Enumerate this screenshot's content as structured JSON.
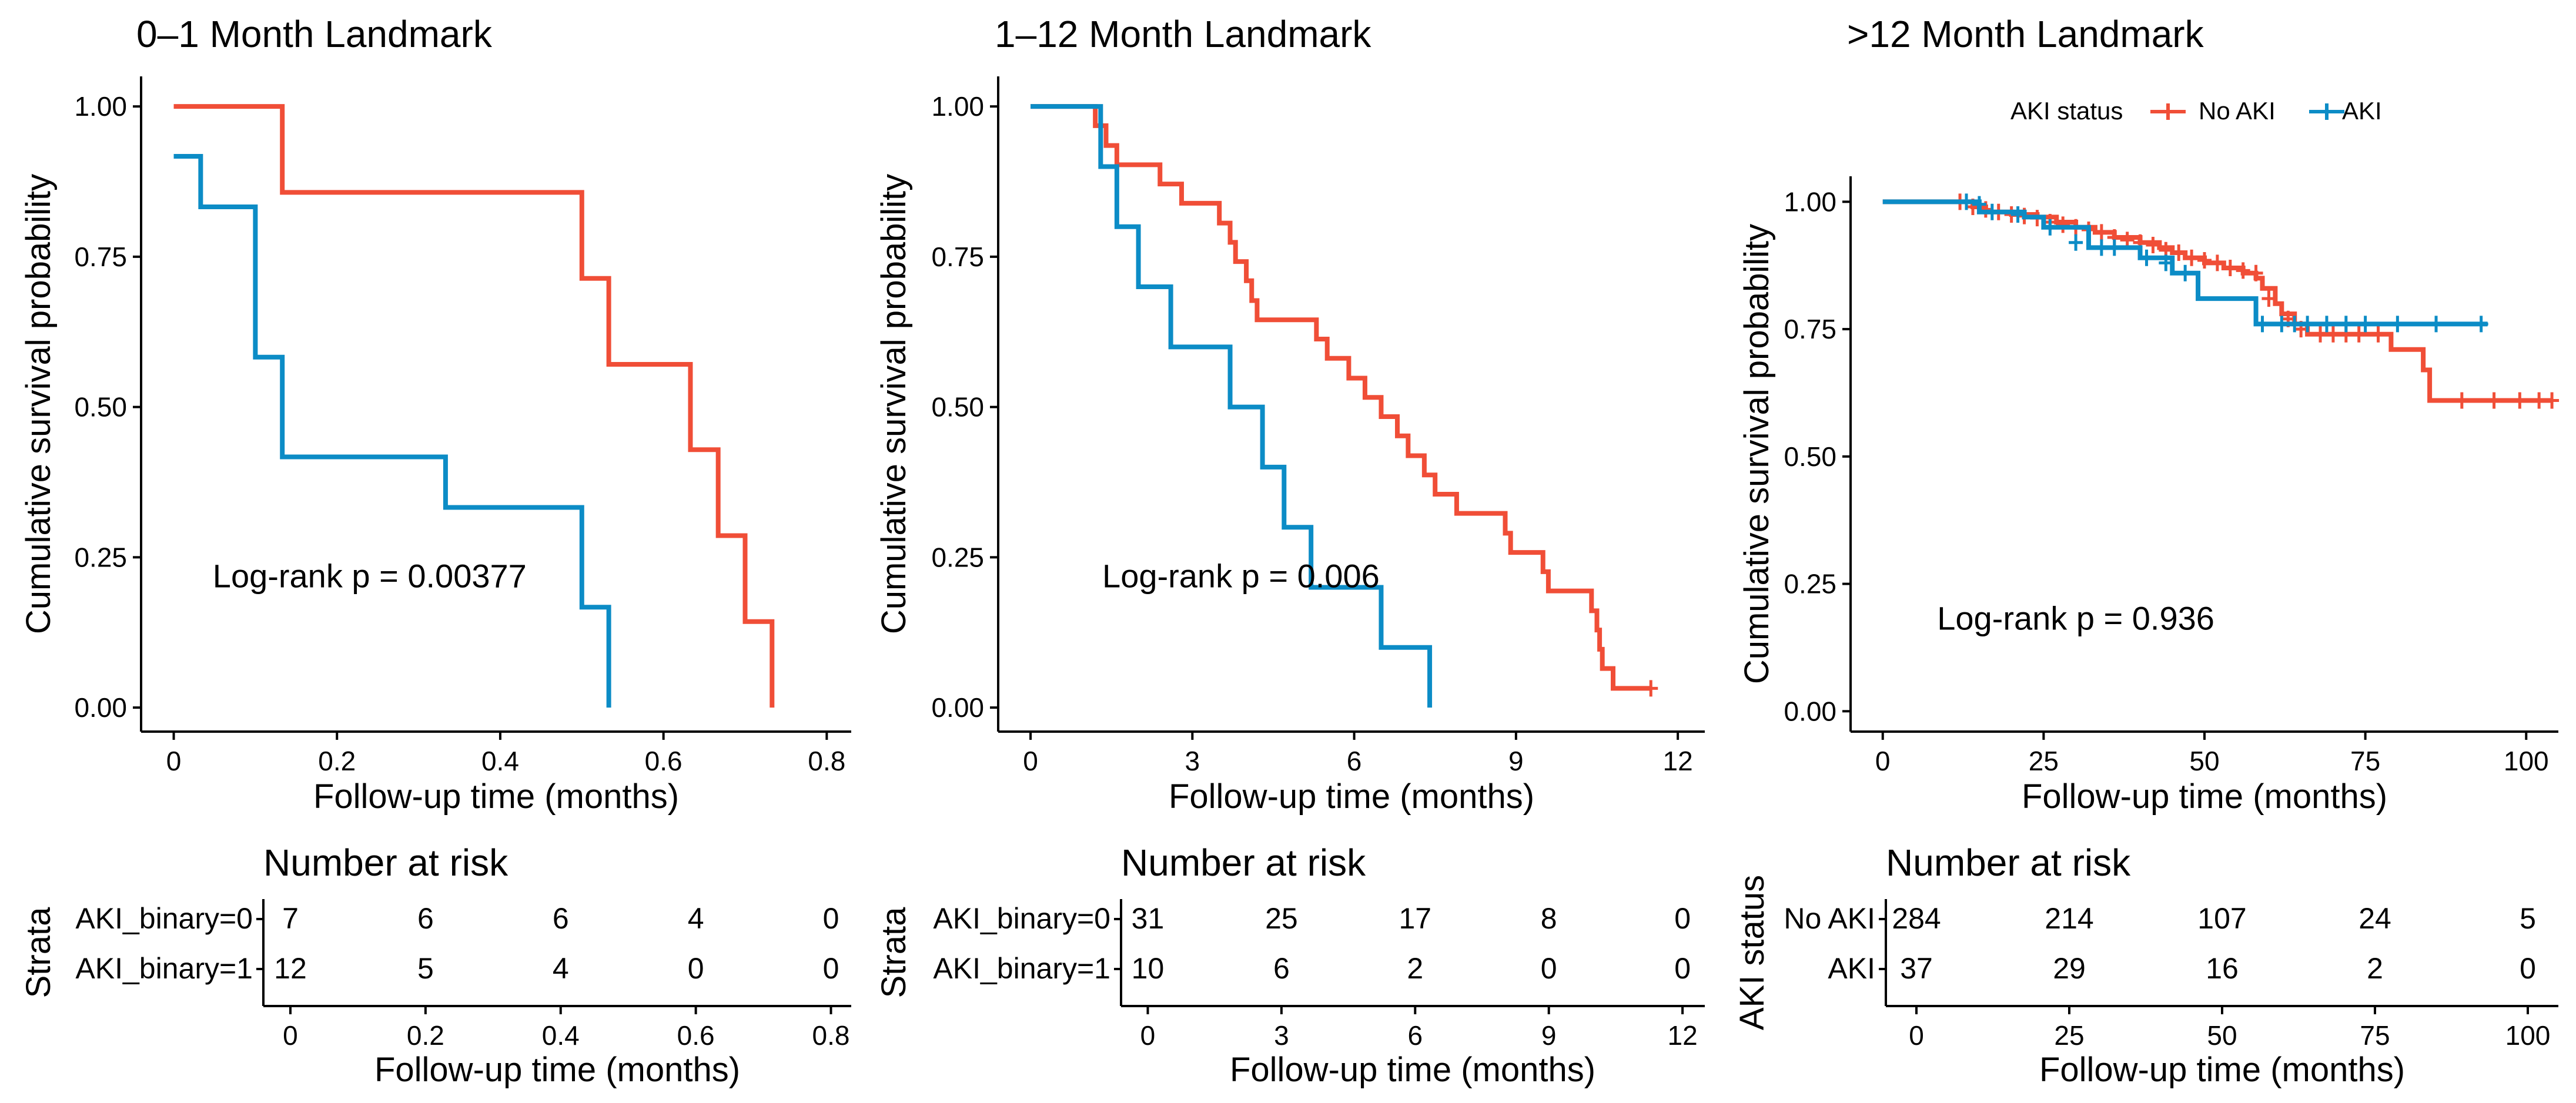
{
  "chart_data": [
    {
      "type": "line",
      "title": "0–1 Month Landmark",
      "xlabel": "Follow-up time (months)",
      "ylabel": "Cumulative survival probability",
      "xlim": [
        -0.04,
        0.83
      ],
      "ylim": [
        -0.04,
        1.05
      ],
      "xticks": [
        0,
        0.2,
        0.4,
        0.6,
        0.8
      ],
      "xtick_labels": [
        "0",
        "0.2",
        "0.4",
        "0.6",
        "0.8"
      ],
      "yticks": [
        0,
        0.25,
        0.5,
        0.75,
        1.0
      ],
      "ytick_labels": [
        "0.00",
        "0.25",
        "0.50",
        "0.75",
        "1.00"
      ],
      "annotation": "Log-rank p = 0.00377",
      "annotation_pos": [
        0.24,
        0.2
      ],
      "series": [
        {
          "name": "AKI_binary=0",
          "color": "#F04E37",
          "steps": [
            [
              0,
              1.0
            ],
            [
              0.133,
              0.857
            ],
            [
              0.5,
              0.714
            ],
            [
              0.533,
              0.571
            ],
            [
              0.633,
              0.429
            ],
            [
              0.667,
              0.286
            ],
            [
              0.7,
              0.143
            ],
            [
              0.733,
              0.0
            ]
          ],
          "end": 0.733,
          "censor": []
        },
        {
          "name": "AKI_binary=1",
          "color": "#0C8CC6",
          "steps": [
            [
              0,
              0.917
            ],
            [
              0.033,
              0.833
            ],
            [
              0.1,
              0.583
            ],
            [
              0.133,
              0.417
            ],
            [
              0.333,
              0.333
            ],
            [
              0.5,
              0.167
            ],
            [
              0.533,
              0.0
            ]
          ],
          "end": 0.533,
          "censor": []
        }
      ],
      "risk_table": {
        "title": "Number at risk",
        "ylabel": "Strata",
        "times": [
          0,
          0.2,
          0.4,
          0.6,
          0.8
        ],
        "time_labels": [
          "0",
          "0.2",
          "0.4",
          "0.6",
          "0.8"
        ],
        "rows": [
          {
            "label": "AKI_binary=0",
            "color": "#F04E37",
            "counts": [
              "7",
              "6",
              "6",
              "4",
              "0"
            ]
          },
          {
            "label": "AKI_binary=1",
            "color": "#0C8CC6",
            "counts": [
              "12",
              "5",
              "4",
              "0",
              "0"
            ]
          }
        ],
        "xlabel": "Follow-up time (months)"
      }
    },
    {
      "type": "line",
      "title": "1–12 Month Landmark",
      "xlabel": "Follow-up time (months)",
      "ylabel": "Cumulative survival probability",
      "xlim": [
        -0.6,
        12.5
      ],
      "ylim": [
        -0.04,
        1.05
      ],
      "xticks": [
        0,
        3,
        6,
        9,
        12
      ],
      "xtick_labels": [
        "0",
        "3",
        "6",
        "9",
        "12"
      ],
      "yticks": [
        0,
        0.25,
        0.5,
        0.75,
        1.0
      ],
      "ytick_labels": [
        "0.00",
        "0.25",
        "0.50",
        "0.75",
        "1.00"
      ],
      "annotation": "Log-rank p = 0.006",
      "annotation_pos": [
        3.9,
        0.2
      ],
      "series": [
        {
          "name": "AKI_binary=0",
          "color": "#F04E37",
          "steps": [
            [
              0,
              1.0
            ],
            [
              1.2,
              0.968
            ],
            [
              1.4,
              0.935
            ],
            [
              1.6,
              0.903
            ],
            [
              2.4,
              0.871
            ],
            [
              2.8,
              0.839
            ],
            [
              3.5,
              0.806
            ],
            [
              3.7,
              0.774
            ],
            [
              3.8,
              0.742
            ],
            [
              4.0,
              0.71
            ],
            [
              4.1,
              0.677
            ],
            [
              4.2,
              0.645
            ],
            [
              5.3,
              0.613
            ],
            [
              5.5,
              0.581
            ],
            [
              5.9,
              0.548
            ],
            [
              6.2,
              0.516
            ],
            [
              6.5,
              0.484
            ],
            [
              6.8,
              0.452
            ],
            [
              7.0,
              0.419
            ],
            [
              7.3,
              0.387
            ],
            [
              7.5,
              0.355
            ],
            [
              7.9,
              0.323
            ],
            [
              8.8,
              0.29
            ],
            [
              8.9,
              0.258
            ],
            [
              9.5,
              0.226
            ],
            [
              9.6,
              0.194
            ],
            [
              10.4,
              0.161
            ],
            [
              10.5,
              0.129
            ],
            [
              10.55,
              0.097
            ],
            [
              10.6,
              0.065
            ],
            [
              10.8,
              0.032
            ]
          ],
          "end": 11.5,
          "censor": [
            [
              11.5,
              0.032
            ]
          ]
        },
        {
          "name": "AKI_binary=1",
          "color": "#0C8CC6",
          "steps": [
            [
              0,
              1.0
            ],
            [
              1.3,
              0.9
            ],
            [
              1.6,
              0.8
            ],
            [
              2.0,
              0.7
            ],
            [
              2.6,
              0.6
            ],
            [
              3.7,
              0.5
            ],
            [
              4.3,
              0.4
            ],
            [
              4.7,
              0.3
            ],
            [
              5.2,
              0.2
            ],
            [
              6.5,
              0.1
            ],
            [
              7.4,
              0.0
            ]
          ],
          "end": 7.4,
          "censor": []
        }
      ],
      "risk_table": {
        "title": "Number at risk",
        "ylabel": "Strata",
        "times": [
          0,
          3,
          6,
          9,
          12
        ],
        "time_labels": [
          "0",
          "3",
          "6",
          "9",
          "12"
        ],
        "rows": [
          {
            "label": "AKI_binary=0",
            "color": "#F04E37",
            "counts": [
              "31",
              "25",
              "17",
              "8",
              "0"
            ]
          },
          {
            "label": "AKI_binary=1",
            "color": "#0C8CC6",
            "counts": [
              "10",
              "6",
              "2",
              "0",
              "0"
            ]
          }
        ],
        "xlabel": "Follow-up time (months)"
      }
    },
    {
      "type": "line",
      "title": ">12 Month Landmark",
      "xlabel": "Follow-up time (months)",
      "ylabel": "Cumulative survival probability",
      "xlim": [
        -5,
        105
      ],
      "ylim": [
        -0.04,
        1.05
      ],
      "xticks": [
        0,
        25,
        50,
        75,
        100
      ],
      "xtick_labels": [
        "0",
        "25",
        "50",
        "75",
        "100"
      ],
      "yticks": [
        0,
        0.25,
        0.5,
        0.75,
        1.0
      ],
      "ytick_labels": [
        "0.00",
        "0.25",
        "0.50",
        "0.75",
        "1.00"
      ],
      "annotation": "Log-rank p = 0.936",
      "annotation_pos": [
        30,
        0.16
      ],
      "legend": {
        "title": "AKI status",
        "position": "top",
        "entries": [
          {
            "name": "No AKI",
            "color": "#F04E37"
          },
          {
            "name": "AKI",
            "color": "#0C8CC6"
          }
        ]
      },
      "series": [
        {
          "name": "No AKI",
          "color": "#F04E37",
          "steps": [
            [
              0,
              1.0
            ],
            [
              14,
              0.99
            ],
            [
              16,
              0.98
            ],
            [
              20,
              0.975
            ],
            [
              24,
              0.97
            ],
            [
              27,
              0.96
            ],
            [
              30,
              0.95
            ],
            [
              33,
              0.94
            ],
            [
              36,
              0.93
            ],
            [
              40,
              0.92
            ],
            [
              43,
              0.91
            ],
            [
              45,
              0.9
            ],
            [
              47,
              0.89
            ],
            [
              50,
              0.88
            ],
            [
              53,
              0.87
            ],
            [
              56,
              0.86
            ],
            [
              58,
              0.85
            ],
            [
              59,
              0.83
            ],
            [
              61,
              0.8
            ],
            [
              62,
              0.78
            ],
            [
              64,
              0.76
            ],
            [
              66,
              0.74
            ],
            [
              79,
              0.71
            ],
            [
              84,
              0.67
            ],
            [
              85,
              0.61
            ]
          ],
          "end": 104,
          "censor": [
            [
              12,
              1.0
            ],
            [
              14,
              0.99
            ],
            [
              16,
              0.985
            ],
            [
              18,
              0.98
            ],
            [
              20,
              0.975
            ],
            [
              22,
              0.972
            ],
            [
              24,
              0.968
            ],
            [
              26,
              0.96
            ],
            [
              28,
              0.955
            ],
            [
              30,
              0.95
            ],
            [
              32,
              0.945
            ],
            [
              34,
              0.94
            ],
            [
              36,
              0.93
            ],
            [
              38,
              0.925
            ],
            [
              40,
              0.92
            ],
            [
              42,
              0.915
            ],
            [
              44,
              0.905
            ],
            [
              46,
              0.9
            ],
            [
              48,
              0.89
            ],
            [
              50,
              0.885
            ],
            [
              52,
              0.88
            ],
            [
              54,
              0.87
            ],
            [
              56,
              0.865
            ],
            [
              58,
              0.86
            ],
            [
              60,
              0.81
            ],
            [
              63,
              0.77
            ],
            [
              65,
              0.75
            ],
            [
              68,
              0.74
            ],
            [
              70,
              0.74
            ],
            [
              72,
              0.74
            ],
            [
              74,
              0.74
            ],
            [
              77,
              0.74
            ],
            [
              90,
              0.61
            ],
            [
              95,
              0.61
            ],
            [
              99,
              0.61
            ],
            [
              102,
              0.61
            ],
            [
              104,
              0.61
            ]
          ]
        },
        {
          "name": "AKI",
          "color": "#0C8CC6",
          "steps": [
            [
              0,
              1.0
            ],
            [
              15,
              0.98
            ],
            [
              22,
              0.97
            ],
            [
              25,
              0.95
            ],
            [
              32,
              0.91
            ],
            [
              40,
              0.89
            ],
            [
              45,
              0.86
            ],
            [
              49,
              0.81
            ],
            [
              58,
              0.76
            ]
          ],
          "end": 94,
          "censor": [
            [
              13,
              1.0
            ],
            [
              15,
              0.995
            ],
            [
              17,
              0.98
            ],
            [
              21,
              0.975
            ],
            [
              26,
              0.95
            ],
            [
              30,
              0.92
            ],
            [
              34,
              0.91
            ],
            [
              36,
              0.91
            ],
            [
              41,
              0.89
            ],
            [
              44,
              0.88
            ],
            [
              47,
              0.86
            ],
            [
              59,
              0.76
            ],
            [
              62,
              0.76
            ],
            [
              64,
              0.76
            ],
            [
              66,
              0.76
            ],
            [
              69,
              0.76
            ],
            [
              72,
              0.76
            ],
            [
              75,
              0.76
            ],
            [
              80,
              0.76
            ],
            [
              86,
              0.76
            ],
            [
              93,
              0.76
            ]
          ]
        }
      ],
      "risk_table": {
        "title": "Number at risk",
        "ylabel": "AKI status",
        "times": [
          0,
          25,
          50,
          75,
          100
        ],
        "time_labels": [
          "0",
          "25",
          "50",
          "75",
          "100"
        ],
        "rows": [
          {
            "label": "No AKI",
            "color": "#F04E37",
            "counts": [
              "284",
              "214",
              "107",
              "24",
              "5"
            ]
          },
          {
            "label": "AKI",
            "color": "#0C8CC6",
            "counts": [
              "37",
              "29",
              "16",
              "2",
              "0"
            ]
          }
        ],
        "xlabel": "Follow-up time (months)"
      }
    }
  ]
}
